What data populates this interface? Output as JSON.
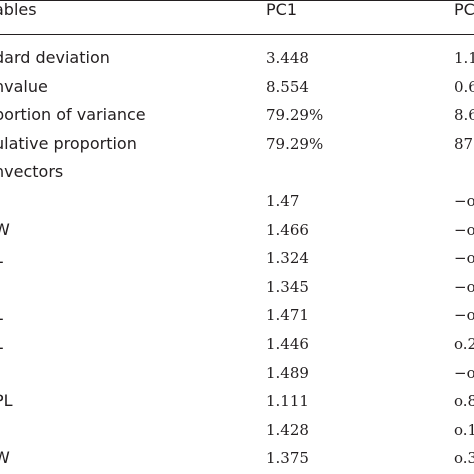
{
  "table": {
    "header": {
      "variables": "ables",
      "pc1": "PC1",
      "pc2": "PC"
    },
    "rows": [
      {
        "variable": "dard deviation",
        "pc1": "3.448",
        "pc2": "1.1"
      },
      {
        "variable": "nvalue",
        "pc1": "8.554",
        "pc2": "0.6"
      },
      {
        "variable": "portion of variance",
        "pc1": "79.29%",
        "pc2": "8.6"
      },
      {
        "variable": "ulative proportion",
        "pc1": "79.29%",
        "pc2": "87"
      },
      {
        "variable": "nvectors",
        "pc1": "",
        "pc2": ""
      },
      {
        "variable": ".",
        "pc1": "1.47",
        "pc2": "−o"
      },
      {
        "variable": "W",
        "pc1": "1.466",
        "pc2": "−o"
      },
      {
        "variable": "L",
        "pc1": "1.324",
        "pc2": "−o"
      },
      {
        "variable": ".",
        "pc1": "1.345",
        "pc2": "−o"
      },
      {
        "variable": "L",
        "pc1": "1.471",
        "pc2": "−o"
      },
      {
        "variable": "L",
        "pc1": "1.446",
        "pc2": "o.2"
      },
      {
        "variable": ".",
        "pc1": "1.489",
        "pc2": "−o"
      },
      {
        "variable": "PL",
        "pc1": "1.111",
        "pc2": "o.8"
      },
      {
        "variable": ".",
        "pc1": "1.428",
        "pc2": "o.1"
      },
      {
        "variable": "W",
        "pc1": "1.375",
        "pc2": "o.3"
      }
    ]
  }
}
